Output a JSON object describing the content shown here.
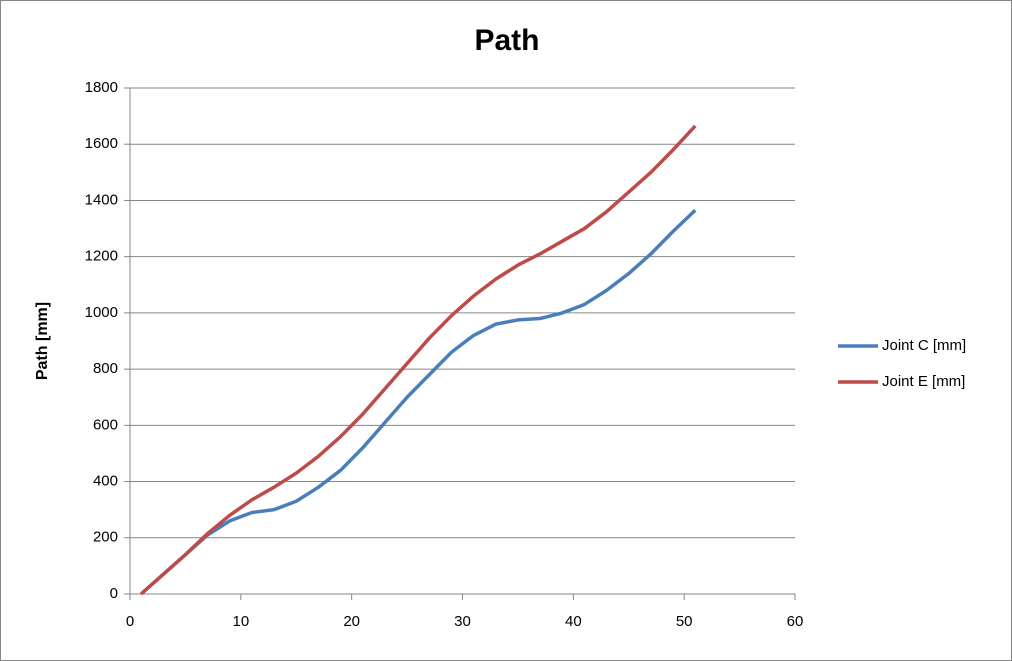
{
  "chart_data": {
    "type": "line",
    "title": "Path",
    "y_label": "Path [mm]",
    "x": [
      1,
      3,
      5,
      7,
      9,
      11,
      13,
      15,
      17,
      19,
      21,
      23,
      25,
      27,
      29,
      31,
      33,
      35,
      37,
      39,
      41,
      43,
      45,
      47,
      49,
      51
    ],
    "series": [
      {
        "name": "Joint C [mm]",
        "color": "#4a7ebb",
        "values": [
          0,
          70,
          140,
          210,
          260,
          290,
          300,
          330,
          380,
          440,
          520,
          610,
          700,
          780,
          860,
          920,
          960,
          975,
          980,
          1000,
          1030,
          1080,
          1140,
          1210,
          1290,
          1365
        ]
      },
      {
        "name": "Joint E [mm]",
        "color": "#be4b48",
        "values": [
          0,
          70,
          140,
          215,
          280,
          335,
          380,
          430,
          490,
          560,
          640,
          730,
          820,
          910,
          990,
          1060,
          1120,
          1170,
          1210,
          1255,
          1300,
          1360,
          1430,
          1500,
          1580,
          1665
        ]
      }
    ],
    "xlim": [
      0,
      60
    ],
    "xticks": [
      0,
      10,
      20,
      30,
      40,
      50,
      60
    ],
    "ylim": [
      0,
      1800
    ],
    "yticks": [
      0,
      200,
      400,
      600,
      800,
      1000,
      1200,
      1400,
      1600,
      1800
    ],
    "grid": true,
    "legend": "right"
  }
}
